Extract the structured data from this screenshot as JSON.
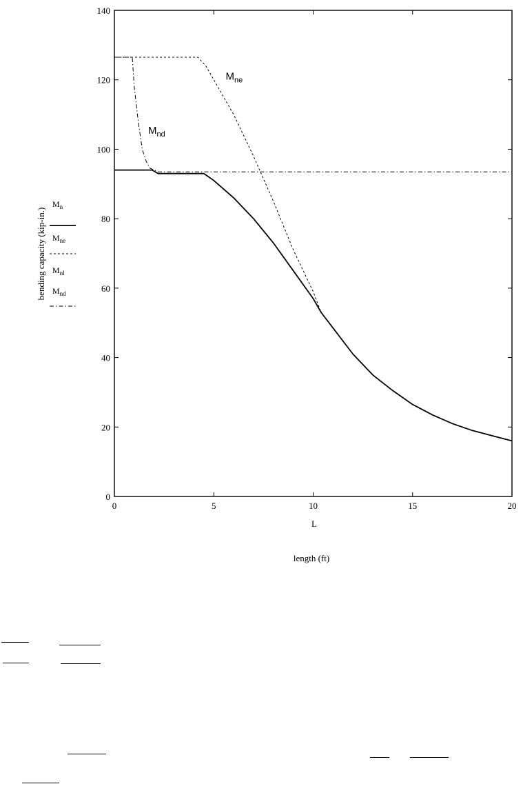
{
  "chart_data": {
    "type": "line",
    "title": "",
    "xlabel": "L",
    "xlabel_secondary": "length (ft)",
    "ylabel": "bending capacity (kip-in.)",
    "xlim": [
      0,
      20
    ],
    "ylim": [
      0,
      140
    ],
    "x_ticks": [
      0,
      5,
      10,
      15,
      20
    ],
    "y_ticks": [
      0,
      20,
      40,
      60,
      80,
      100,
      120,
      140
    ],
    "grid": false,
    "legend_position": "left, outside plot",
    "series": [
      {
        "name": "Mn",
        "base": "M",
        "sub": "n",
        "style": "solid",
        "x": [
          0,
          1.9,
          2.2,
          3.0,
          4.0,
          4.5,
          5.0,
          6.0,
          7.0,
          8.0,
          9.0,
          10.0,
          10.4,
          11.0,
          12.0,
          13.0,
          14.0,
          15.0,
          16.0,
          17.0,
          18.0,
          19.0,
          20.0
        ],
        "y": [
          94,
          94,
          93,
          93,
          93,
          93,
          91,
          86,
          80,
          73,
          65,
          57,
          53,
          48.5,
          41,
          35,
          30.5,
          26.5,
          23.5,
          21,
          19,
          17.5,
          16
        ]
      },
      {
        "name": "Mne",
        "base": "M",
        "sub": "ne",
        "style": "dashed",
        "x": [
          0,
          4.2,
          4.6,
          5.0,
          6.0,
          7.0,
          8.0,
          9.0,
          10.0,
          10.4
        ],
        "y": [
          126.5,
          126.5,
          124,
          120,
          110,
          98,
          85,
          71,
          59,
          53
        ]
      },
      {
        "name": "Mnl",
        "base": "M",
        "sub": "nl",
        "style": "none",
        "x": [],
        "y": []
      },
      {
        "name": "Mnd",
        "base": "M",
        "sub": "nd",
        "style": "dash-dot",
        "x": [
          0,
          0.9,
          1.0,
          1.2,
          1.4,
          1.6,
          1.8,
          2.2,
          3.0,
          5.0,
          10.0,
          15.0,
          20.0
        ],
        "y": [
          126.5,
          126.5,
          118,
          108,
          100,
          96.5,
          94.5,
          93.5,
          93.5,
          93.5,
          93.5,
          93.5,
          93.5
        ]
      }
    ],
    "annotations": [
      {
        "base": "M",
        "sub": "ne",
        "x": 5.6,
        "y": 120
      },
      {
        "base": "M",
        "sub": "nd",
        "x": 1.7,
        "y": 104.5
      }
    ]
  }
}
